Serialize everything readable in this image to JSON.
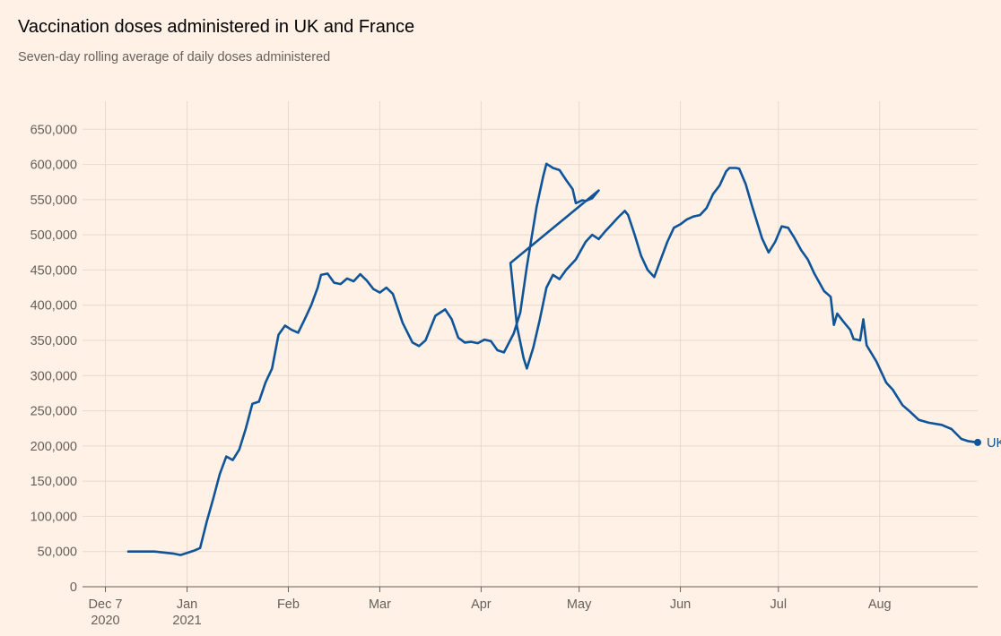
{
  "header": {
    "title": "Vaccination doses administered in UK and France",
    "subtitle": "Seven-day rolling average of daily doses administered"
  },
  "colors": {
    "background": "#FFF1E5",
    "grid": "#E6D9CE",
    "uk": "#0F5499",
    "france": "#E8608E"
  },
  "chart_data": {
    "type": "line",
    "title": "Vaccination doses administered in UK and France",
    "subtitle": "Seven-day rolling average of daily doses administered",
    "xlabel": "",
    "ylabel": "",
    "x_range": [
      "2020-11-30",
      "2021-08-31"
    ],
    "ylim": [
      0,
      700000
    ],
    "grid": true,
    "legend": "end-of-line labels",
    "y_ticks": [
      {
        "value": 0,
        "label": "0"
      },
      {
        "value": 50000,
        "label": "50,000"
      },
      {
        "value": 100000,
        "label": "100,000"
      },
      {
        "value": 150000,
        "label": "150,000"
      },
      {
        "value": 200000,
        "label": "200,000"
      },
      {
        "value": 250000,
        "label": "250,000"
      },
      {
        "value": 300000,
        "label": "300,000"
      },
      {
        "value": 350000,
        "label": "350,000"
      },
      {
        "value": 400000,
        "label": "400,000"
      },
      {
        "value": 450000,
        "label": "450,000"
      },
      {
        "value": 500000,
        "label": "500,000"
      },
      {
        "value": 550000,
        "label": "550,000"
      },
      {
        "value": 600000,
        "label": "600,000"
      },
      {
        "value": 650000,
        "label": "650,000"
      }
    ],
    "x_ticks": [
      {
        "date": "2020-12-07",
        "label": "Dec 7",
        "sublabel": "2020"
      },
      {
        "date": "2021-01-01",
        "label": "Jan",
        "sublabel": "2021"
      },
      {
        "date": "2021-02-01",
        "label": "Feb",
        "sublabel": ""
      },
      {
        "date": "2021-03-01",
        "label": "Mar",
        "sublabel": ""
      },
      {
        "date": "2021-04-01",
        "label": "Apr",
        "sublabel": ""
      },
      {
        "date": "2021-05-01",
        "label": "May",
        "sublabel": ""
      },
      {
        "date": "2021-06-01",
        "label": "Jun",
        "sublabel": ""
      },
      {
        "date": "2021-07-01",
        "label": "Jul",
        "sublabel": ""
      },
      {
        "date": "2021-08-01",
        "label": "Aug",
        "sublabel": ""
      }
    ],
    "series": [
      {
        "name": "UK",
        "color": "#0F5499",
        "points": [
          [
            "2020-12-14",
            50000
          ],
          [
            "2020-12-22",
            50000
          ],
          [
            "2020-12-28",
            47000
          ],
          [
            "2020-12-30",
            45000
          ],
          [
            "2021-01-01",
            48000
          ],
          [
            "2021-01-03",
            51000
          ],
          [
            "2021-01-05",
            55000
          ],
          [
            "2021-01-07",
            92000
          ],
          [
            "2021-01-09",
            125000
          ],
          [
            "2021-01-11",
            160000
          ],
          [
            "2021-01-13",
            185000
          ],
          [
            "2021-01-15",
            180000
          ],
          [
            "2021-01-17",
            195000
          ],
          [
            "2021-01-19",
            225000
          ],
          [
            "2021-01-21",
            260000
          ],
          [
            "2021-01-23",
            263000
          ],
          [
            "2021-01-25",
            290000
          ],
          [
            "2021-01-27",
            310000
          ],
          [
            "2021-01-29",
            358000
          ],
          [
            "2021-01-31",
            371000
          ],
          [
            "2021-02-02",
            365000
          ],
          [
            "2021-02-04",
            361000
          ],
          [
            "2021-02-06",
            380000
          ],
          [
            "2021-02-08",
            400000
          ],
          [
            "2021-02-10",
            425000
          ],
          [
            "2021-02-11",
            443000
          ],
          [
            "2021-02-13",
            445000
          ],
          [
            "2021-02-15",
            432000
          ],
          [
            "2021-02-17",
            430000
          ],
          [
            "2021-02-19",
            438000
          ],
          [
            "2021-02-21",
            434000
          ],
          [
            "2021-02-23",
            444000
          ],
          [
            "2021-02-25",
            435000
          ],
          [
            "2021-02-27",
            423000
          ],
          [
            "2021-03-01",
            418000
          ],
          [
            "2021-03-03",
            425000
          ],
          [
            "2021-03-05",
            416000
          ],
          [
            "2021-03-08",
            375000
          ],
          [
            "2021-03-11",
            347000
          ],
          [
            "2021-03-13",
            342000
          ],
          [
            "2021-03-15",
            350000
          ],
          [
            "2021-03-18",
            385000
          ],
          [
            "2021-03-21",
            394000
          ],
          [
            "2021-03-23",
            380000
          ],
          [
            "2021-03-25",
            354000
          ],
          [
            "2021-03-27",
            347000
          ],
          [
            "2021-03-29",
            348000
          ],
          [
            "2021-03-31",
            346000
          ],
          [
            "2021-04-02",
            351000
          ],
          [
            "2021-04-04",
            349000
          ],
          [
            "2021-04-06",
            336000
          ],
          [
            "2021-04-08",
            333000
          ],
          [
            "2021-04-11",
            360000
          ],
          [
            "2021-04-13",
            390000
          ],
          [
            "2021-04-15",
            455000
          ],
          [
            "2021-04-18",
            540000
          ],
          [
            "2021-04-20",
            583000
          ],
          [
            "2021-04-21",
            601000
          ],
          [
            "2021-04-23",
            595000
          ],
          [
            "2021-04-25",
            592000
          ],
          [
            "2021-04-27",
            578000
          ],
          [
            "2021-04-29",
            565000
          ],
          [
            "2021-04-30",
            545000
          ],
          [
            "2021-05-02",
            549000
          ],
          [
            "2021-05-03",
            548000
          ],
          [
            "2021-05-05",
            552000
          ],
          [
            "2021-05-07",
            563000
          ],
          [
            "2021-04-10",
            460000
          ],
          [
            "2021-04-12",
            370000
          ],
          [
            "2021-04-14",
            325000
          ],
          [
            "2021-04-15",
            310000
          ],
          [
            "2021-04-17",
            340000
          ],
          [
            "2021-04-19",
            380000
          ],
          [
            "2021-04-21",
            425000
          ],
          [
            "2021-04-23",
            443000
          ],
          [
            "2021-04-25",
            437000
          ],
          [
            "2021-04-27",
            450000
          ],
          [
            "2021-04-30",
            465000
          ],
          [
            "2021-05-03",
            490000
          ],
          [
            "2021-05-05",
            500000
          ],
          [
            "2021-05-07",
            494000
          ],
          [
            "2021-05-09",
            505000
          ],
          [
            "2021-05-11",
            515000
          ],
          [
            "2021-05-13",
            525000
          ],
          [
            "2021-05-15",
            534000
          ],
          [
            "2021-05-16",
            528000
          ],
          [
            "2021-05-18",
            500000
          ],
          [
            "2021-05-20",
            470000
          ],
          [
            "2021-05-22",
            450000
          ],
          [
            "2021-05-24",
            440000
          ],
          [
            "2021-05-26",
            465000
          ],
          [
            "2021-05-28",
            490000
          ],
          [
            "2021-05-30",
            510000
          ],
          [
            "2021-06-01",
            515000
          ],
          [
            "2021-06-03",
            522000
          ],
          [
            "2021-06-05",
            526000
          ],
          [
            "2021-06-07",
            528000
          ],
          [
            "2021-06-09",
            538000
          ],
          [
            "2021-06-11",
            558000
          ],
          [
            "2021-06-13",
            570000
          ],
          [
            "2021-06-15",
            590000
          ],
          [
            "2021-06-16",
            595000
          ],
          [
            "2021-06-18",
            595000
          ],
          [
            "2021-06-19",
            594000
          ],
          [
            "2021-06-21",
            572000
          ],
          [
            "2021-06-23",
            540000
          ],
          [
            "2021-06-26",
            495000
          ],
          [
            "2021-06-28",
            475000
          ],
          [
            "2021-06-30",
            490000
          ],
          [
            "2021-07-02",
            512000
          ],
          [
            "2021-07-04",
            510000
          ],
          [
            "2021-07-06",
            495000
          ],
          [
            "2021-07-08",
            478000
          ],
          [
            "2021-07-10",
            465000
          ],
          [
            "2021-07-12",
            445000
          ],
          [
            "2021-07-15",
            420000
          ],
          [
            "2021-07-17",
            412000
          ],
          [
            "2021-07-18",
            372000
          ],
          [
            "2021-07-19",
            388000
          ],
          [
            "2021-07-21",
            376000
          ],
          [
            "2021-07-23",
            365000
          ],
          [
            "2021-07-24",
            352000
          ],
          [
            "2021-07-26",
            350000
          ],
          [
            "2021-07-27",
            380000
          ],
          [
            "2021-07-28",
            343000
          ],
          [
            "2021-07-31",
            320000
          ],
          [
            "2021-08-03",
            290000
          ],
          [
            "2021-08-05",
            280000
          ],
          [
            "2021-08-08",
            258000
          ],
          [
            "2021-08-10",
            250000
          ],
          [
            "2021-08-13",
            237000
          ],
          [
            "2021-08-16",
            233000
          ],
          [
            "2021-08-20",
            230000
          ],
          [
            "2021-08-23",
            224000
          ],
          [
            "2021-08-26",
            210000
          ],
          [
            "2021-08-28",
            207000
          ],
          [
            "2021-08-31",
            205000
          ]
        ]
      }
    ]
  }
}
